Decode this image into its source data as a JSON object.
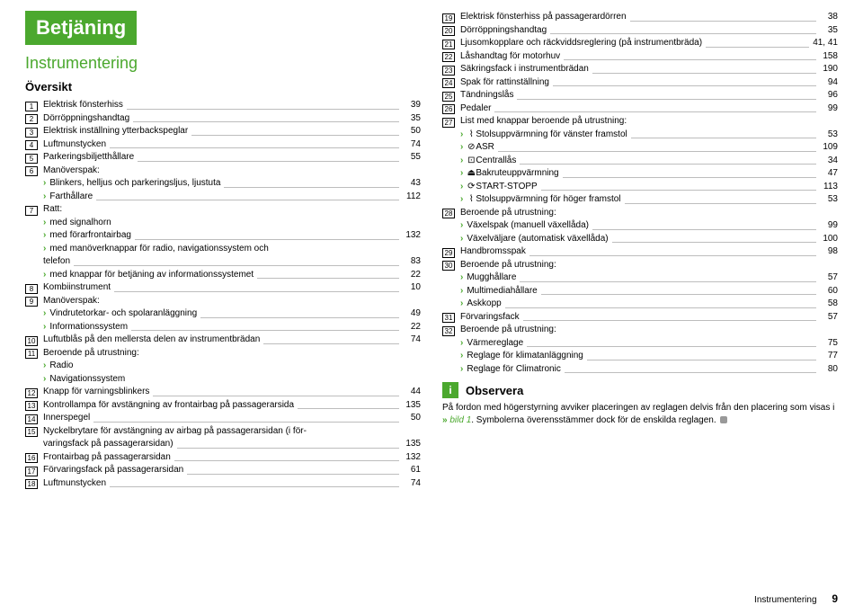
{
  "h1": "Betjäning",
  "h2": "Instrumentering",
  "h3": "Översikt",
  "left": [
    {
      "n": "1",
      "t": "Elektrisk fönsterhiss",
      "p": "39"
    },
    {
      "n": "2",
      "t": "Dörröppningshandtag",
      "p": "35"
    },
    {
      "n": "3",
      "t": "Elektrisk inställning ytterbackspeglar",
      "p": "50"
    },
    {
      "n": "4",
      "t": "Luftmunstycken",
      "p": "74"
    },
    {
      "n": "5",
      "t": "Parkeringsbiljetthållare",
      "p": "55"
    },
    {
      "n": "6",
      "t": "Manöverspak:",
      "noleader": true
    },
    {
      "chev": true,
      "t": "Blinkers, helljus och parkeringsljus, ljustuta",
      "p": "43"
    },
    {
      "chev": true,
      "t": "Farthållare",
      "p": "112"
    },
    {
      "n": "7",
      "t": "Ratt:",
      "noleader": true
    },
    {
      "chev": true,
      "t": "med signalhorn",
      "noleader": true
    },
    {
      "chev": true,
      "t": "med förarfrontairbag",
      "p": "132"
    },
    {
      "chev": true,
      "t": "med manöverknappar för radio, navigationssystem och",
      "noleader": true
    },
    {
      "cont": true,
      "t": "telefon",
      "p": "83"
    },
    {
      "chev": true,
      "t": "med knappar för betjäning av informationssystemet",
      "p": "22"
    },
    {
      "n": "8",
      "t": "Kombiinstrument",
      "p": "10"
    },
    {
      "n": "9",
      "t": "Manöverspak:",
      "noleader": true
    },
    {
      "chev": true,
      "t": "Vindrutetorkar- och spolaranläggning",
      "p": "49"
    },
    {
      "chev": true,
      "t": "Informationssystem",
      "p": "22"
    },
    {
      "n": "10",
      "t": "Luftutblås på den mellersta delen av instrumentbrädan",
      "p": "74"
    },
    {
      "n": "11",
      "t": "Beroende på utrustning:",
      "noleader": true
    },
    {
      "chev": true,
      "t": "Radio",
      "noleader": true
    },
    {
      "chev": true,
      "t": "Navigationssystem",
      "noleader": true
    },
    {
      "n": "12",
      "t": "Knapp för varningsblinkers",
      "p": "44"
    },
    {
      "n": "13",
      "t": "Kontrollampa för avstängning av frontairbag på passagerarsida",
      "p": "135"
    },
    {
      "n": "14",
      "t": "Innerspegel",
      "p": "50"
    },
    {
      "n": "15",
      "t": "Nyckelbrytare för avstängning av airbag på passagerarsidan (i för-",
      "noleader": true
    },
    {
      "cont2": true,
      "t": "varingsfack på passagerarsidan)",
      "p": "135"
    },
    {
      "n": "16",
      "t": "Frontairbag på passagerarsidan",
      "p": "132"
    },
    {
      "n": "17",
      "t": "Förvaringsfack på passagerarsidan",
      "p": "61"
    },
    {
      "n": "18",
      "t": "Luftmunstycken",
      "p": "74"
    }
  ],
  "right": [
    {
      "n": "19",
      "t": "Elektrisk fönsterhiss på passagerardörren",
      "p": "38"
    },
    {
      "n": "20",
      "t": "Dörröppningshandtag",
      "p": "35"
    },
    {
      "n": "21",
      "t": "Ljusomkopplare och räckviddsreglering (på instrumentbräda)",
      "p": "41, 41"
    },
    {
      "n": "22",
      "t": "Låshandtag för motorhuv",
      "p": "158"
    },
    {
      "n": "23",
      "t": "Säkringsfack i instrumentbrädan",
      "p": "190"
    },
    {
      "n": "24",
      "t": "Spak för rattinställning",
      "p": "94"
    },
    {
      "n": "25",
      "t": "Tändningslås",
      "p": "96"
    },
    {
      "n": "26",
      "t": "Pedaler",
      "p": "99"
    },
    {
      "n": "27",
      "t": "List med knappar beroende på utrustning:",
      "noleader": true
    },
    {
      "chev": true,
      "icon": "⌇",
      "t": "Stolsuppvärmning för vänster framstol",
      "p": "53"
    },
    {
      "chev": true,
      "icon": "⊘",
      "t": "ASR",
      "p": "109"
    },
    {
      "chev": true,
      "icon": "⊡",
      "t": "Centrallås",
      "p": "34"
    },
    {
      "chev": true,
      "icon": "⏏",
      "t": "Bakruteuppvärmning",
      "p": "47"
    },
    {
      "chev": true,
      "icon": "⟳",
      "t": "START-STOPP",
      "p": "113"
    },
    {
      "chev": true,
      "icon": "⌇",
      "t": "Stolsuppvärmning för höger framstol",
      "p": "53"
    },
    {
      "n": "28",
      "t": "Beroende på utrustning:",
      "noleader": true
    },
    {
      "chev": true,
      "t": "Växelspak (manuell växellåda)",
      "p": "99"
    },
    {
      "chev": true,
      "t": "Växelväljare (automatisk växellåda)",
      "p": "100"
    },
    {
      "n": "29",
      "t": "Handbromsspak",
      "p": "98"
    },
    {
      "n": "30",
      "t": "Beroende på utrustning:",
      "noleader": true
    },
    {
      "chev": true,
      "t": "Mugghållare",
      "p": "57"
    },
    {
      "chev": true,
      "t": "Multimediahållare",
      "p": "60"
    },
    {
      "chev": true,
      "t": "Askkopp",
      "p": "58"
    },
    {
      "n": "31",
      "t": "Förvaringsfack",
      "p": "57"
    },
    {
      "n": "32",
      "t": "Beroende på utrustning:",
      "noleader": true
    },
    {
      "chev": true,
      "t": "Värmereglage",
      "p": "75"
    },
    {
      "chev": true,
      "t": "Reglage för klimatanläggning",
      "p": "77"
    },
    {
      "chev": true,
      "t": "Reglage för Climatronic",
      "p": "80"
    }
  ],
  "obs": {
    "title": "Observera",
    "body_pre": "På fordon med högerstyrning avviker placeringen av reglagen delvis från den placering som visas i ",
    "body_link": "bild 1",
    "body_post": ". Symbolerna överensstämmer dock för de enskilda reglagen."
  },
  "footer": {
    "section": "Instrumentering",
    "page": "9"
  }
}
